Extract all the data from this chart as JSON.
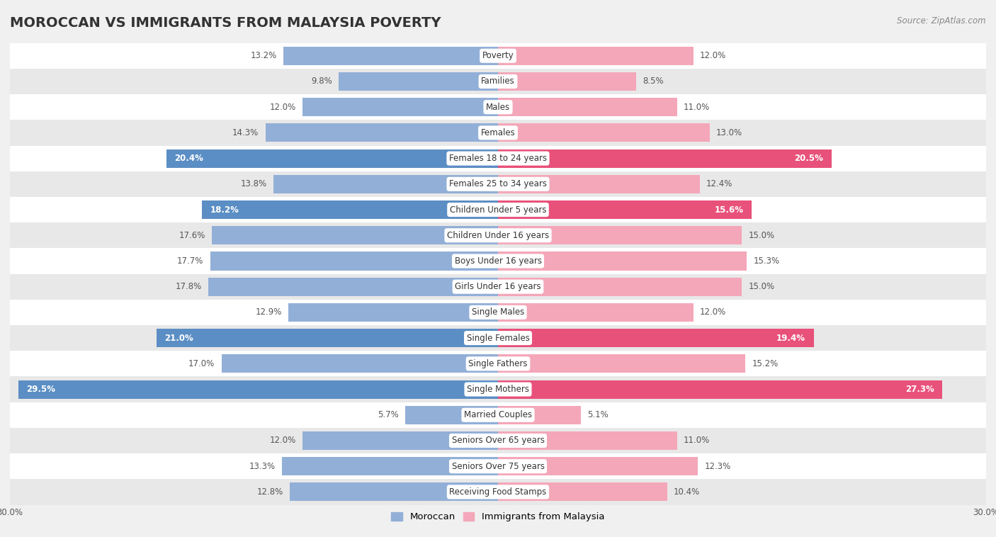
{
  "title": "MOROCCAN VS IMMIGRANTS FROM MALAYSIA POVERTY",
  "source": "Source: ZipAtlas.com",
  "categories": [
    "Poverty",
    "Families",
    "Males",
    "Females",
    "Females 18 to 24 years",
    "Females 25 to 34 years",
    "Children Under 5 years",
    "Children Under 16 years",
    "Boys Under 16 years",
    "Girls Under 16 years",
    "Single Males",
    "Single Females",
    "Single Fathers",
    "Single Mothers",
    "Married Couples",
    "Seniors Over 65 years",
    "Seniors Over 75 years",
    "Receiving Food Stamps"
  ],
  "moroccan": [
    13.2,
    9.8,
    12.0,
    14.3,
    20.4,
    13.8,
    18.2,
    17.6,
    17.7,
    17.8,
    12.9,
    21.0,
    17.0,
    29.5,
    5.7,
    12.0,
    13.3,
    12.8
  ],
  "malaysia": [
    12.0,
    8.5,
    11.0,
    13.0,
    20.5,
    12.4,
    15.6,
    15.0,
    15.3,
    15.0,
    12.0,
    19.4,
    15.2,
    27.3,
    5.1,
    11.0,
    12.3,
    10.4
  ],
  "moroccan_color": "#92afd7",
  "malaysia_color": "#f4a7b9",
  "moroccan_highlight_color": "#5b8ec4",
  "malaysia_highlight_color": "#e8517a",
  "highlight_rows": [
    4,
    6,
    11,
    13
  ],
  "bg_color": "#f0f0f0",
  "row_bg_even": "#ffffff",
  "row_bg_odd": "#e8e8e8",
  "axis_max": 30.0,
  "bar_height": 0.72,
  "title_fontsize": 14,
  "label_fontsize": 8.5,
  "value_fontsize": 8.5,
  "legend_fontsize": 9.5,
  "source_fontsize": 8.5
}
